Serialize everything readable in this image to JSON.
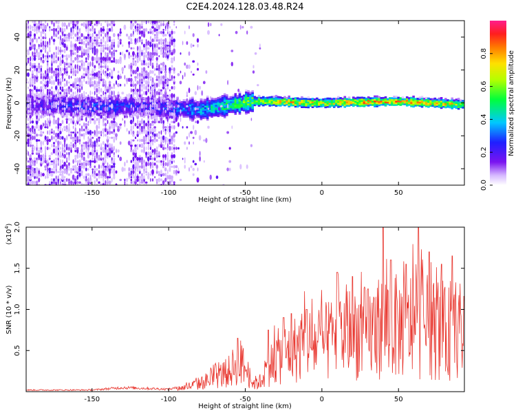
{
  "title": "C2E4.2024.128.03.48.R24",
  "chart_data": [
    {
      "type": "heatmap",
      "xlabel": "Height of straight line (km)",
      "ylabel": "Frequency (Hz)",
      "xlim": [
        -193,
        93
      ],
      "ylim": [
        -50,
        50
      ],
      "x_ticks": [
        -150,
        -100,
        -50,
        0,
        50
      ],
      "y_ticks": [
        -40,
        -20,
        0,
        20,
        40
      ],
      "colorbar": {
        "label": "Normalized spectral amplitude",
        "range": [
          0,
          1
        ],
        "ticks": [
          "0.0",
          "0.2",
          "0.4",
          "0.6",
          "0.8"
        ],
        "colormap": "rainbow (white, violet, blue, cyan, green, yellow, orange, red, magenta)"
      },
      "ridge": {
        "frequency_hz": [
          [
            -190,
            -1
          ],
          [
            -150,
            -2
          ],
          [
            -120,
            -2
          ],
          [
            -100,
            -3
          ],
          [
            -80,
            -4
          ],
          [
            -60,
            -1
          ],
          [
            -45,
            1
          ],
          [
            -30,
            1
          ],
          [
            -10,
            0
          ],
          [
            0,
            0
          ],
          [
            20,
            0.5
          ],
          [
            50,
            1
          ],
          [
            93,
            -1
          ]
        ],
        "peak_amplitude": [
          [
            -190,
            0.25
          ],
          [
            -150,
            0.35
          ],
          [
            -120,
            0.3
          ],
          [
            -100,
            0.35
          ],
          [
            -80,
            0.45
          ],
          [
            -60,
            0.6
          ],
          [
            -40,
            0.75
          ],
          [
            -20,
            0.9
          ],
          [
            0,
            0.8
          ],
          [
            30,
            0.95
          ],
          [
            60,
            0.9
          ],
          [
            93,
            0.85
          ]
        ]
      }
    },
    {
      "type": "line",
      "xlabel": "Height of straight line (km)",
      "ylabel": "SNR (10 * v/v)",
      "multiplier": "(x10",
      "multiplier_exp": "4",
      "xlim": [
        -193,
        93
      ],
      "ylim": [
        0,
        2.0
      ],
      "x_ticks": [
        -150,
        -100,
        -50,
        0,
        50
      ],
      "y_ticks": [
        "0.5",
        "1.0",
        "1.5",
        "2.0"
      ],
      "series": [
        {
          "color": "#e8342c",
          "envelope": [
            [
              -193,
              0.02
            ],
            [
              -150,
              0.02
            ],
            [
              -130,
              0.05
            ],
            [
              -100,
              0.03
            ],
            [
              -90,
              0.06
            ],
            [
              -80,
              0.12
            ],
            [
              -70,
              0.2
            ],
            [
              -60,
              0.3
            ],
            [
              -55,
              0.45
            ],
            [
              -50,
              0.35
            ],
            [
              -45,
              0.12
            ],
            [
              -40,
              0.15
            ],
            [
              -35,
              0.35
            ],
            [
              -30,
              0.5
            ],
            [
              -25,
              0.55
            ],
            [
              -20,
              0.6
            ],
            [
              -10,
              0.7
            ],
            [
              0,
              0.7
            ],
            [
              10,
              0.8
            ],
            [
              20,
              0.9
            ],
            [
              30,
              0.85
            ],
            [
              40,
              1.0
            ],
            [
              50,
              0.95
            ],
            [
              60,
              1.0
            ],
            [
              70,
              0.95
            ],
            [
              80,
              0.85
            ],
            [
              93,
              0.9
            ]
          ],
          "notable_peaks": [
            [
              -55,
              0.65
            ],
            [
              -35,
              0.75
            ],
            [
              -25,
              0.9
            ],
            [
              -20,
              0.95
            ],
            [
              -10,
              1.0
            ],
            [
              10,
              1.45
            ],
            [
              20,
              1.4
            ],
            [
              30,
              1.25
            ],
            [
              40,
              2.0
            ],
            [
              45,
              1.6
            ],
            [
              55,
              1.55
            ],
            [
              63,
              2.0
            ],
            [
              70,
              1.7
            ],
            [
              78,
              1.55
            ],
            [
              85,
              1.65
            ]
          ]
        }
      ]
    }
  ]
}
